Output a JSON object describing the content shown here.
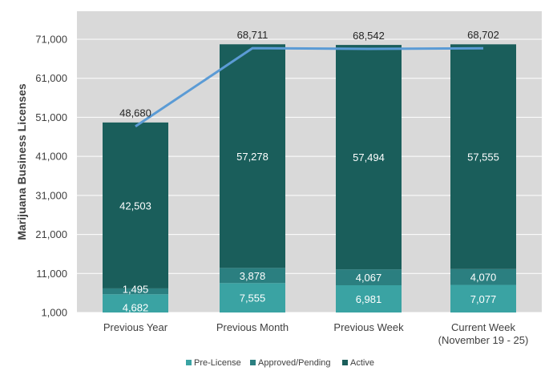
{
  "chart_data": {
    "type": "bar",
    "stacked": true,
    "categories": [
      "Previous Year",
      "Previous Month",
      "Previous Week",
      "Current Week (November 19 - 25)"
    ],
    "category_lines": [
      [
        "Previous Year"
      ],
      [
        "Previous Month"
      ],
      [
        "Previous Week"
      ],
      [
        "Current Week",
        "(November 19 - 25)"
      ]
    ],
    "series": [
      {
        "name": "Pre-License",
        "values": [
          4682,
          7555,
          6981,
          7077
        ],
        "color": "#3aa3a3"
      },
      {
        "name": "Approved/Pending",
        "values": [
          1495,
          3878,
          4067,
          4070
        ],
        "color": "#2b7f80"
      },
      {
        "name": "Active",
        "values": [
          42503,
          57278,
          57494,
          57555
        ],
        "color": "#1a5e5b"
      }
    ],
    "series_labels": [
      [
        "4,682",
        "7,555",
        "6,981",
        "7,077"
      ],
      [
        "1,495",
        "3,878",
        "4,067",
        "4,070"
      ],
      [
        "42,503",
        "57,278",
        "57,494",
        "57,555"
      ]
    ],
    "totals": {
      "values": [
        48680,
        68711,
        68542,
        68702
      ],
      "labels": [
        "48,680",
        "68,711",
        "68,542",
        "68,702"
      ],
      "line_color": "#5b9bd5"
    },
    "ylabel": "Marijuana Business Licenses",
    "xlabel": "",
    "ylim": [
      1000,
      71000
    ],
    "yticks": [
      1000,
      11000,
      21000,
      31000,
      41000,
      51000,
      61000,
      71000
    ],
    "ytick_labels": [
      "1,000",
      "11,000",
      "21,000",
      "31,000",
      "41,000",
      "51,000",
      "61,000",
      "71,000"
    ],
    "grid": true,
    "legend": "bottom",
    "background": "#d9d9d9"
  }
}
